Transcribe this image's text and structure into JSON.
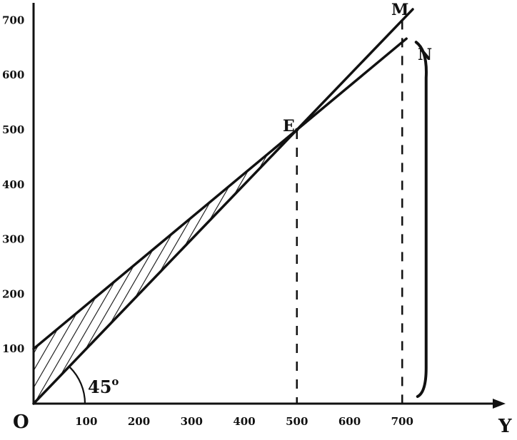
{
  "chart_data": {
    "type": "line",
    "x_axis_title": "Y",
    "origin_label": "O",
    "xlim": [
      0,
      700
    ],
    "ylim": [
      0,
      700
    ],
    "x_ticks": [
      100,
      200,
      300,
      400,
      500,
      600,
      700
    ],
    "y_ticks": [
      100,
      200,
      300,
      400,
      500,
      600,
      700
    ],
    "x_tick_labels": [
      "100",
      "200",
      "300",
      "400",
      "500",
      "600",
      "700"
    ],
    "y_tick_labels": [
      "100",
      "200",
      "300",
      "400",
      "500",
      "600",
      "700"
    ],
    "grid": false,
    "series": [
      {
        "name": "M",
        "line": "45-degree",
        "x": [
          0,
          700
        ],
        "y": [
          0,
          700
        ]
      },
      {
        "name": "N",
        "x": [
          0,
          700
        ],
        "y": [
          100,
          660
        ]
      }
    ],
    "points": [
      {
        "label": "E",
        "x": 500,
        "y": 500
      }
    ],
    "vertical_dashed_lines": [
      500,
      700
    ],
    "shaded_region": {
      "between": [
        "N",
        "M"
      ],
      "x_range": [
        0,
        500
      ],
      "pattern": "diagonal-hatch"
    },
    "annotations": [
      {
        "text": "45°",
        "meaning": "angle of line M with the horizontal axis"
      }
    ],
    "brace": {
      "x": 740,
      "y_range": [
        0,
        660
      ],
      "side": "right"
    }
  },
  "labels": {
    "x_axis_title": "Y",
    "origin": "O",
    "angle_value": "45",
    "angle_degree": "o",
    "point_E": "E",
    "point_M": "M",
    "point_N": "N"
  },
  "colors": {
    "ink": "#111111",
    "background": "#ffffff"
  }
}
